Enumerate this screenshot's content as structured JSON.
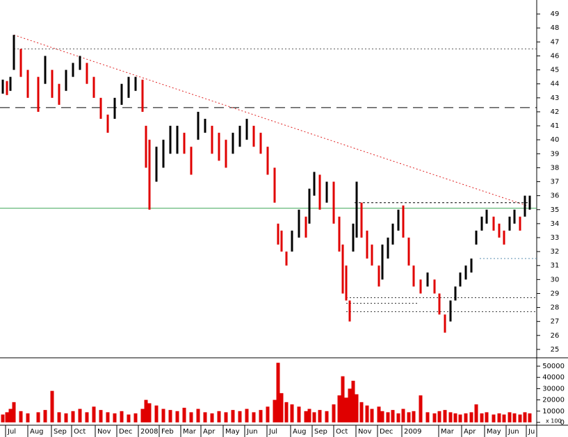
{
  "chart_data": {
    "type": "hilo",
    "x": [
      4,
      10,
      15,
      20,
      30,
      40,
      55,
      65,
      75,
      85,
      95,
      105,
      115,
      125,
      135,
      145,
      155,
      165,
      175,
      185,
      195,
      205,
      210,
      215,
      225,
      235,
      245,
      255,
      265,
      275,
      285,
      295,
      305,
      315,
      325,
      335,
      345,
      355,
      365,
      375,
      385,
      395,
      400,
      405,
      412,
      420,
      430,
      440,
      445,
      452,
      460,
      470,
      480,
      488,
      493,
      498,
      503,
      508,
      513,
      520,
      528,
      535,
      545,
      550,
      558,
      565,
      573,
      580,
      588,
      595,
      605,
      615,
      625,
      632,
      640,
      648,
      655,
      662,
      670,
      678,
      685,
      693,
      700,
      710,
      718,
      725,
      733,
      740,
      748,
      755,
      762
    ],
    "high": [
      44.3,
      44.2,
      44.5,
      47.5,
      46.5,
      45,
      44.5,
      46,
      45,
      44,
      45,
      45.5,
      46,
      45.5,
      44.5,
      43,
      41.8,
      43,
      44,
      44.5,
      44.5,
      44.3,
      41,
      40,
      39.5,
      40,
      41,
      41,
      40.5,
      39.5,
      42,
      41.5,
      41,
      40.5,
      40,
      40.5,
      41,
      41.5,
      41,
      40.5,
      39.5,
      38,
      34,
      33.5,
      32,
      33.5,
      35,
      34.5,
      36.5,
      37.7,
      37.5,
      37,
      37,
      34.5,
      32.5,
      31,
      28.5,
      34,
      37,
      35.5,
      33.5,
      32.5,
      31,
      32.5,
      33,
      34,
      35,
      35.3,
      33,
      31,
      30,
      30.5,
      30,
      29,
      27.5,
      28.5,
      29.5,
      30.5,
      31,
      31.5,
      33.5,
      34.5,
      35,
      34.5,
      34,
      33.5,
      34.5,
      35,
      34.5,
      36,
      36
    ],
    "low": [
      43.3,
      43.2,
      43.5,
      45,
      44.5,
      43,
      42,
      44,
      43,
      42.5,
      43.5,
      44.5,
      45,
      44,
      43,
      41.5,
      40.5,
      41.5,
      42.5,
      43,
      43.5,
      42,
      38,
      35,
      37,
      38,
      39,
      39,
      39,
      37.5,
      40,
      40.5,
      39,
      38.5,
      38,
      39,
      39.5,
      40,
      39.5,
      39,
      37.5,
      35.5,
      32.5,
      32,
      31,
      32,
      33,
      33,
      34,
      36,
      35,
      35.5,
      34,
      32,
      29,
      28.5,
      27,
      32,
      33,
      33,
      31.5,
      31,
      29.5,
      30,
      31.5,
      32.5,
      33.5,
      33,
      31,
      29.5,
      29,
      29.5,
      29,
      27.5,
      26.2,
      27,
      28.5,
      29.5,
      30,
      30.5,
      32.5,
      33.5,
      34,
      33.5,
      33,
      32.5,
      33.5,
      34,
      33.5,
      34.5,
      35
    ],
    "volume": [
      7000,
      9000,
      12000,
      18000,
      10000,
      8000,
      9000,
      11000,
      28000,
      9000,
      8000,
      10000,
      12000,
      9000,
      14000,
      11000,
      9000,
      8000,
      10000,
      7000,
      8000,
      12000,
      20000,
      17000,
      15000,
      12000,
      11000,
      10000,
      13000,
      9000,
      12000,
      9000,
      8000,
      10000,
      9000,
      11000,
      10000,
      12000,
      9000,
      11000,
      14000,
      20000,
      53000,
      26000,
      18000,
      16000,
      14000,
      10000,
      12000,
      9000,
      11000,
      10000,
      16000,
      24000,
      41000,
      22000,
      30000,
      37000,
      25000,
      18000,
      15000,
      12000,
      14000,
      10000,
      9000,
      11000,
      8000,
      12000,
      9000,
      10000,
      24000,
      9000,
      8000,
      10000,
      11000,
      9000,
      8000,
      7000,
      8000,
      9000,
      16000,
      8000,
      9000,
      7000,
      8000,
      7000,
      9000,
      8000,
      7000,
      9000,
      8000
    ],
    "xlim": [
      0,
      772
    ],
    "xticks": [
      {
        "value": 8,
        "label": "Jul"
      },
      {
        "value": 40,
        "label": "Aug"
      },
      {
        "value": 74,
        "label": "Sep"
      },
      {
        "value": 103,
        "label": "Oct"
      },
      {
        "value": 137,
        "label": "Nov"
      },
      {
        "value": 168,
        "label": "Dec"
      },
      {
        "value": 199,
        "label": "2008"
      },
      {
        "value": 229,
        "label": "Feb"
      },
      {
        "value": 260,
        "label": "Mar"
      },
      {
        "value": 289,
        "label": "Apr"
      },
      {
        "value": 321,
        "label": "May"
      },
      {
        "value": 352,
        "label": "Jun"
      },
      {
        "value": 384,
        "label": "Jul"
      },
      {
        "value": 418,
        "label": "Aug"
      },
      {
        "value": 449,
        "label": "Sep"
      },
      {
        "value": 480,
        "label": "Oct"
      },
      {
        "value": 512,
        "label": "Nov"
      },
      {
        "value": 543,
        "label": "Dec"
      },
      {
        "value": 578,
        "label": "2009"
      },
      {
        "value": 631,
        "label": "Mar"
      },
      {
        "value": 664,
        "label": "Apr"
      },
      {
        "value": 697,
        "label": "May"
      },
      {
        "value": 728,
        "label": "Jun"
      },
      {
        "value": 757,
        "label": "Ju"
      }
    ],
    "ylim": [
      24.4,
      50
    ],
    "yticks": [
      25,
      26,
      27,
      28,
      29,
      30,
      31,
      32,
      33,
      34,
      35,
      36,
      37,
      38,
      39,
      40,
      41,
      42,
      43,
      44,
      45,
      46,
      47,
      48,
      49
    ],
    "y2lim": [
      -2500,
      56200
    ],
    "y2ticks": [
      0,
      10000,
      20000,
      30000,
      40000,
      50000
    ],
    "volume_unit": "x 100",
    "lines": [
      {
        "x": [
          0,
          772
        ],
        "y": [
          35.1,
          35.1
        ],
        "color": "#3aa655",
        "dash": "none"
      },
      {
        "x": [
          0,
          772
        ],
        "y": [
          42.3,
          42.3
        ],
        "color": "#000000",
        "dash": "14 8"
      },
      {
        "x": [
          20,
          772
        ],
        "y": [
          46.5,
          46.5
        ],
        "color": "#555555",
        "dash": "2 3"
      },
      {
        "x": [
          20,
          757
        ],
        "y": [
          47.5,
          35.3
        ],
        "color": "#e02020",
        "dash": "2 3"
      },
      {
        "x": [
          510,
          760
        ],
        "y": [
          35.5,
          35.5
        ],
        "color": "#000000",
        "dash": "3 3"
      },
      {
        "x": [
          690,
          772
        ],
        "y": [
          31.5,
          31.5
        ],
        "color": "#5a8fb0",
        "dash": "2 3"
      },
      {
        "x": [
          498,
          772
        ],
        "y": [
          28.7,
          28.7
        ],
        "color": "#333333",
        "dash": "2 3"
      },
      {
        "x": [
          498,
          600
        ],
        "y": [
          28.3,
          28.3
        ],
        "color": "#333333",
        "dash": "2 3"
      },
      {
        "x": [
          498,
          772
        ],
        "y": [
          27.7,
          27.7
        ],
        "color": "#333333",
        "dash": "2 3"
      }
    ],
    "up_color": "#000000",
    "down_color": "#e00000",
    "volume_color": "#e00000"
  }
}
